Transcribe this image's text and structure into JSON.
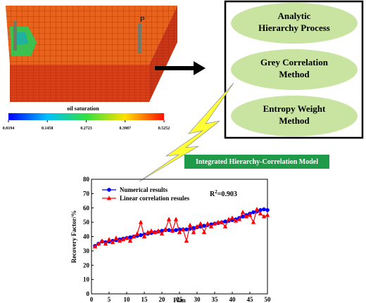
{
  "reservoir": {
    "well_label": "P",
    "caption": "oil saturation",
    "colorbar": {
      "range": [
        0.0194,
        0.5252
      ],
      "ticks": [
        0.0194,
        0.1458,
        0.2723,
        0.3987,
        0.5252
      ]
    }
  },
  "methods": [
    "Analytic Hierarchy Process",
    "Grey Correlation Method",
    "Entropy Weight Method"
  ],
  "model_label": "Integrated Hierarchy-Correlation Model",
  "chart_data": {
    "type": "line",
    "xlabel": "Plan",
    "ylabel": "Recovery Factor/%",
    "annotation": {
      "base": "R",
      "sup": "2",
      "rest": "=0.903"
    },
    "x": [
      1,
      2,
      3,
      4,
      5,
      6,
      7,
      8,
      9,
      10,
      11,
      12,
      13,
      14,
      15,
      16,
      17,
      18,
      19,
      20,
      21,
      22,
      23,
      24,
      25,
      26,
      27,
      28,
      29,
      30,
      31,
      32,
      33,
      34,
      35,
      36,
      37,
      38,
      39,
      40,
      41,
      42,
      43,
      44,
      45,
      46,
      47,
      48,
      49,
      50
    ],
    "series": [
      {
        "name": "Numerical results",
        "color": "#0000ff",
        "marker": "circle",
        "values": [
          33.5,
          35,
          36.5,
          36,
          36.5,
          37,
          37.5,
          38,
          38.5,
          39,
          39.5,
          40,
          40.5,
          41,
          41.5,
          42,
          42.5,
          43,
          43.5,
          44,
          44.5,
          44.5,
          44,
          44.5,
          45,
          45,
          45,
          45.5,
          46,
          46.5,
          47,
          47.5,
          48,
          48.5,
          49,
          49.5,
          50,
          50.5,
          51,
          51.5,
          52,
          53,
          54,
          55,
          56,
          57,
          57.5,
          58.5,
          59,
          58.5
        ]
      },
      {
        "name": "Linear correlation resules",
        "color": "#ff0000",
        "marker": "triangle",
        "values": [
          33,
          35,
          37,
          35,
          38,
          36,
          39,
          37,
          38,
          39,
          37,
          40,
          42,
          50,
          40,
          43,
          44,
          43,
          44,
          42,
          45,
          52,
          44,
          52,
          43,
          45,
          37,
          48,
          43,
          47,
          49,
          43,
          49,
          47,
          49,
          50,
          50,
          47,
          52,
          53,
          51,
          52,
          57,
          54,
          55,
          50,
          59,
          56,
          54,
          55
        ]
      }
    ],
    "xlim": [
      0,
      50
    ],
    "xticks": [
      0,
      5,
      10,
      15,
      20,
      25,
      30,
      35,
      40,
      45,
      50
    ],
    "ylim": [
      0,
      80
    ],
    "yticks": [
      0,
      10,
      20,
      30,
      40,
      50,
      60,
      70,
      80
    ]
  }
}
